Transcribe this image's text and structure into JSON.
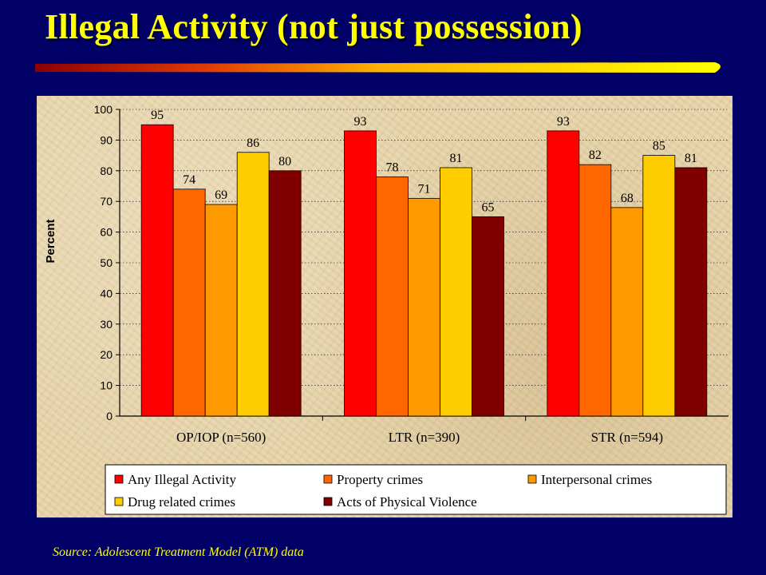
{
  "slide": {
    "title": "Illegal Activity (not just possession)",
    "source": "Source:  Adolescent Treatment Model (ATM) data"
  },
  "colors": {
    "background": "#000066",
    "title": "#FFFF00",
    "panel": "#E6D3A8"
  },
  "chart_data": {
    "type": "bar",
    "title": "",
    "xlabel": "",
    "ylabel": "Percent",
    "ylim": [
      0,
      100
    ],
    "yticks": [
      0,
      10,
      20,
      30,
      40,
      50,
      60,
      70,
      80,
      90,
      100
    ],
    "grid": true,
    "legend_position": "bottom",
    "categories": [
      "OP/IOP (n=560)",
      "LTR (n=390)",
      "STR (n=594)"
    ],
    "series": [
      {
        "name": "Any Illegal Activity",
        "color": "#FF0000",
        "values": [
          95,
          93,
          93
        ],
        "labels": [
          "95",
          "93",
          "93"
        ]
      },
      {
        "name": "Property crimes",
        "color": "#FF6600",
        "values": [
          74,
          78,
          82
        ],
        "labels": [
          "74",
          "78",
          "82"
        ]
      },
      {
        "name": "Interpersonal crimes",
        "color": "#FF9900",
        "values": [
          69,
          71,
          68
        ],
        "labels": [
          "69",
          "71",
          "68"
        ]
      },
      {
        "name": "Drug related crimes",
        "color": "#FFCC00",
        "values": [
          86,
          81,
          85
        ],
        "labels": [
          "86",
          "81",
          "85"
        ]
      },
      {
        "name": "Acts of Physical Violence",
        "color": "#800000",
        "values": [
          80,
          65,
          81
        ],
        "labels": [
          "80",
          "65",
          "81"
        ]
      }
    ]
  }
}
